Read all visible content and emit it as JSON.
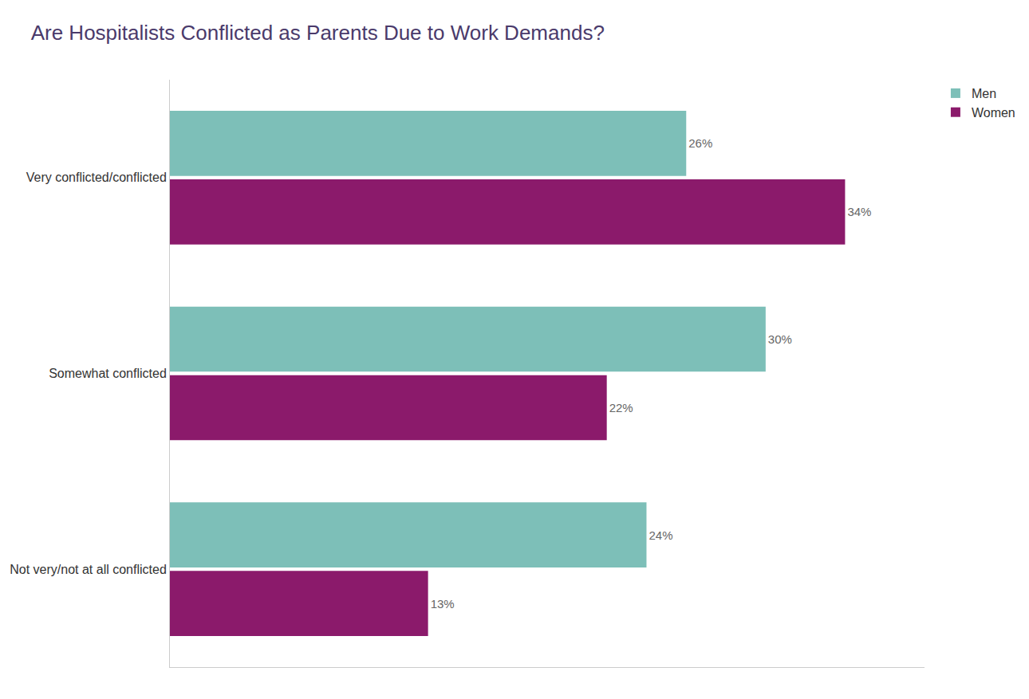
{
  "chart_data": {
    "type": "bar",
    "orientation": "horizontal",
    "title": "Are Hospitalists Conflicted as Parents Due to Work Demands?",
    "categories": [
      "Very conflicted/conflicted",
      "Somewhat conflicted",
      "Not very/not at all conflicted"
    ],
    "series": [
      {
        "name": "Men",
        "color": "#7dbfb8",
        "values": [
          26,
          30,
          24
        ],
        "value_labels": [
          "26%",
          "30%",
          "24%"
        ]
      },
      {
        "name": "Women",
        "color": "#8b1a6b",
        "values": [
          34,
          22,
          13
        ],
        "value_labels": [
          "34%",
          "22%",
          "13%"
        ]
      }
    ],
    "xlim": [
      0,
      38
    ],
    "data_labels": true,
    "tick_labels": "y",
    "grid": false,
    "legend": "upper right"
  }
}
